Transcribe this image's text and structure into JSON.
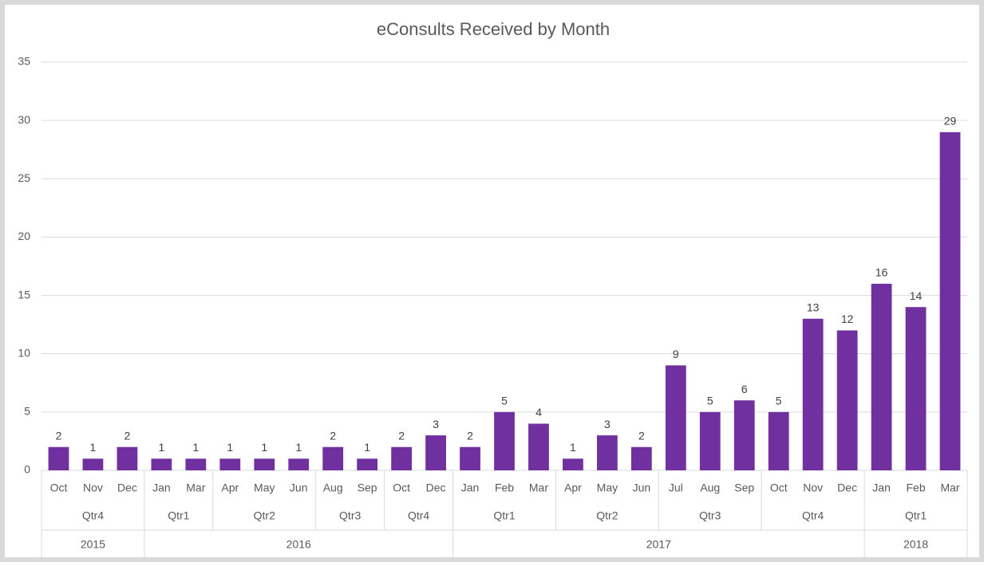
{
  "chart_data": {
    "type": "bar",
    "title": "eConsults Received by Month",
    "color": "#7030a0",
    "ylim": [
      0,
      35
    ],
    "yticks": [
      0,
      5,
      10,
      15,
      20,
      25,
      30,
      35
    ],
    "grid": true,
    "years": [
      {
        "name": "2015",
        "quarters": [
          {
            "name": "Qtr4",
            "categories": [
              "Oct",
              "Nov",
              "Dec"
            ],
            "values": [
              2,
              1,
              2
            ]
          }
        ]
      },
      {
        "name": "2016",
        "quarters": [
          {
            "name": "Qtr1",
            "categories": [
              "Jan",
              "Mar"
            ],
            "values": [
              1,
              1
            ]
          },
          {
            "name": "Qtr2",
            "categories": [
              "Apr",
              "May",
              "Jun"
            ],
            "values": [
              1,
              1,
              1
            ]
          },
          {
            "name": "Qtr3",
            "categories": [
              "Aug",
              "Sep"
            ],
            "values": [
              2,
              1
            ]
          },
          {
            "name": "Qtr4",
            "categories": [
              "Oct",
              "Dec"
            ],
            "values": [
              2,
              3
            ]
          }
        ]
      },
      {
        "name": "2017",
        "quarters": [
          {
            "name": "Qtr1",
            "categories": [
              "Jan",
              "Feb",
              "Mar"
            ],
            "values": [
              2,
              5,
              4
            ]
          },
          {
            "name": "Qtr2",
            "categories": [
              "Apr",
              "May",
              "Jun"
            ],
            "values": [
              1,
              3,
              2
            ]
          },
          {
            "name": "Qtr3",
            "categories": [
              "Jul",
              "Aug",
              "Sep"
            ],
            "values": [
              9,
              5,
              6
            ]
          },
          {
            "name": "Qtr4",
            "categories": [
              "Oct",
              "Nov",
              "Dec"
            ],
            "values": [
              5,
              13,
              12
            ]
          }
        ]
      },
      {
        "name": "2018",
        "quarters": [
          {
            "name": "Qtr1",
            "categories": [
              "Jan",
              "Feb",
              "Mar"
            ],
            "values": [
              16,
              14,
              29
            ]
          }
        ]
      }
    ]
  }
}
